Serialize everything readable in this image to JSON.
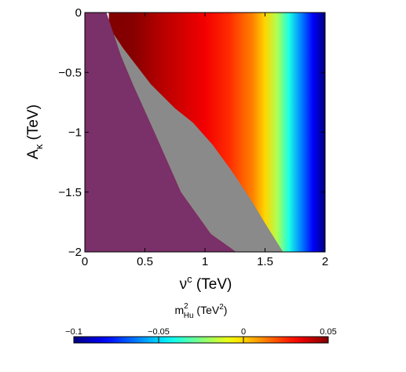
{
  "chart_data": {
    "type": "heatmap",
    "title": "",
    "x_axis": {
      "label_base": "ν",
      "label_sup": "c",
      "label_unit": " (TeV)",
      "range": [
        0,
        2
      ],
      "ticks": [
        0,
        0.5,
        1,
        1.5,
        2
      ],
      "tick_labels": [
        "0",
        "0.5",
        "1",
        "1.5",
        "2"
      ]
    },
    "y_axis": {
      "label_base": "A",
      "label_sub": "κ",
      "label_unit": " (TeV)",
      "range": [
        -2,
        0
      ],
      "ticks": [
        0,
        -0.5,
        -1,
        -1.5,
        -2
      ],
      "tick_labels": [
        "0",
        "−0.5",
        "−1",
        "−1.5",
        "−2"
      ]
    },
    "colorbar": {
      "label_base": "m",
      "label_sup": "2",
      "label_sub": "Hu",
      "label_unit_prefix": " (TeV",
      "label_unit_sup": "2",
      "label_unit_suffix": ")",
      "range": [
        -0.1,
        0.05
      ],
      "ticks": [
        -0.1,
        -0.05,
        0,
        0.05
      ],
      "tick_labels": [
        "−0.1",
        "−0.05",
        "0",
        "0.05"
      ],
      "colormap": "jet",
      "placement": "bottom"
    },
    "regions": [
      {
        "kind": "excluded",
        "color": "#7a3068",
        "boundary": [
          [
            0,
            0
          ],
          [
            0.18,
            0
          ],
          [
            0.24,
            -0.18
          ],
          [
            0.3,
            -0.36
          ],
          [
            0.4,
            -0.6
          ],
          [
            0.58,
            -1
          ],
          [
            0.8,
            -1.5
          ],
          [
            1.05,
            -1.85
          ],
          [
            1.26,
            -2
          ],
          [
            0,
            -2
          ]
        ]
      },
      {
        "kind": "excluded",
        "color": "#8a8a8a",
        "boundary": [
          [
            0.24,
            -0.18
          ],
          [
            0.32,
            -0.3
          ],
          [
            0.55,
            -0.6
          ],
          [
            0.75,
            -0.8
          ],
          [
            0.9,
            -0.92
          ],
          [
            1.06,
            -1.1
          ],
          [
            1.22,
            -1.32
          ],
          [
            1.38,
            -1.56
          ],
          [
            1.5,
            -1.76
          ],
          [
            1.65,
            -2
          ],
          [
            1.26,
            -2
          ],
          [
            1.05,
            -1.85
          ],
          [
            0.8,
            -1.5
          ],
          [
            0.58,
            -1
          ],
          [
            0.4,
            -0.6
          ],
          [
            0.3,
            -0.36
          ]
        ]
      }
    ],
    "field": {
      "quantity": "m_Hu^2",
      "description": "value depends on x only",
      "x": [
        0.2,
        0.4,
        0.6,
        0.8,
        1.0,
        1.2,
        1.4,
        1.5,
        1.6,
        1.7,
        1.8,
        1.9,
        2.0
      ],
      "value": [
        0.05,
        0.049,
        0.043,
        0.038,
        0.033,
        0.025,
        0.012,
        0.0,
        -0.018,
        -0.04,
        -0.062,
        -0.082,
        -0.1
      ]
    },
    "grid": false,
    "colors": {
      "excluded_purple": "#7a3068",
      "excluded_gray": "#8a8a8a"
    }
  }
}
